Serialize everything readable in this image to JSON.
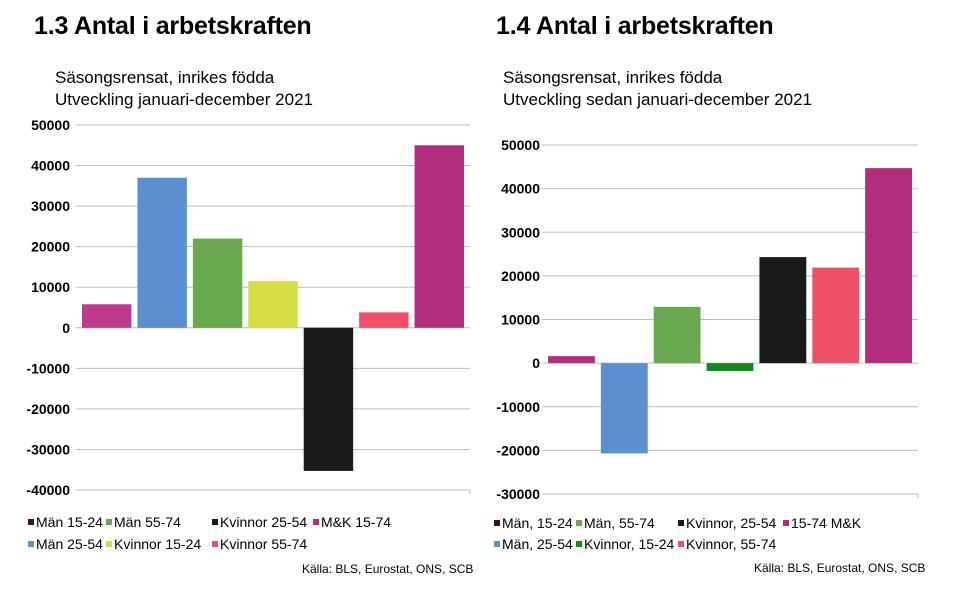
{
  "chart_data": [
    {
      "type": "bar",
      "title": "1.3 Antal i arbetskraften",
      "subtitle_lines": [
        "Säsongsrensat, inrikes födda",
        "Utveckling januari-december 2021"
      ],
      "ylim": [
        -40000,
        50000
      ],
      "y_ticks": [
        "50000",
        "40000",
        "30000",
        "20000",
        "10000",
        "0",
        "-10000",
        "-20000",
        "-30000",
        "-40000"
      ],
      "grid": true,
      "categories": [
        "Män 15-24",
        "Män 25-54",
        "Män 55-74",
        "Kvinnor 15-24",
        "Kvinnor 25-54",
        "Kvinnor 55-74",
        "M&K 15-74"
      ],
      "values": [
        5800,
        37000,
        22000,
        11500,
        -35300,
        3800,
        45000
      ],
      "colors": [
        "#bf3a8c",
        "#5b8fcf",
        "#6aa84f",
        "#d6dc44",
        "#1a1a1a",
        "#ef5067",
        "#b32d7c"
      ],
      "legend_rows": [
        [
          "Män 15-24",
          "Män 55-74",
          "Kvinnor 25-54",
          "M&K 15-74"
        ],
        [
          "Män 25-54",
          "Kvinnor 15-24",
          "Kvinnor 55-74"
        ]
      ],
      "legend_colors": {
        "Män 15-24": "#3a1024",
        "Män 55-74": "#6aa84f",
        "Kvinnor 25-54": "#1a1a1a",
        "M&K 15-74": "#b32d7c",
        "Män 25-54": "#5b8fcf",
        "Kvinnor 15-24": "#d6dc44",
        "Kvinnor 55-74": "#ef5067"
      },
      "source": "Källa: BLS, Eurostat, ONS, SCB"
    },
    {
      "type": "bar",
      "title": "1.4 Antal i arbetskraften",
      "subtitle_lines": [
        "Säsongsrensat, inrikes födda",
        "Utveckling sedan januari-december 2021"
      ],
      "ylim": [
        -30000,
        50000
      ],
      "y_ticks": [
        "50000",
        "40000",
        "30000",
        "20000",
        "10000",
        "0",
        "-10000",
        "-20000",
        "-30000"
      ],
      "grid": true,
      "categories": [
        "Män, 15-24",
        "Män, 25-54",
        "Män, 55-74",
        "Kvinnor, 15-24",
        "Kvinnor, 25-54",
        "Kvinnor, 55-74",
        "15-74 M&K"
      ],
      "values": [
        1600,
        -20700,
        12900,
        -1800,
        24300,
        21900,
        44700
      ],
      "colors": [
        "#b32d7c",
        "#5b8fcf",
        "#6aa84f",
        "#138a1e",
        "#1a1a1a",
        "#ef5067",
        "#b32d7c"
      ],
      "legend_rows": [
        [
          "Män, 15-24",
          "Män, 55-74",
          "Kvinnor, 25-54",
          "15-74 M&K"
        ],
        [
          "Män, 25-54",
          "Kvinnor, 15-24",
          "Kvinnor, 55-74"
        ]
      ],
      "legend_colors": {
        "Män, 15-24": "#3a1024",
        "Män, 55-74": "#6aa84f",
        "Kvinnor, 25-54": "#1a1a1a",
        "15-74 M&K": "#b32d7c",
        "Män, 25-54": "#5b8fcf",
        "Kvinnor, 15-24": "#138a1e",
        "Kvinnor, 55-74": "#ef5067"
      },
      "source": "Källa: BLS, Eurostat, ONS, SCB"
    }
  ]
}
